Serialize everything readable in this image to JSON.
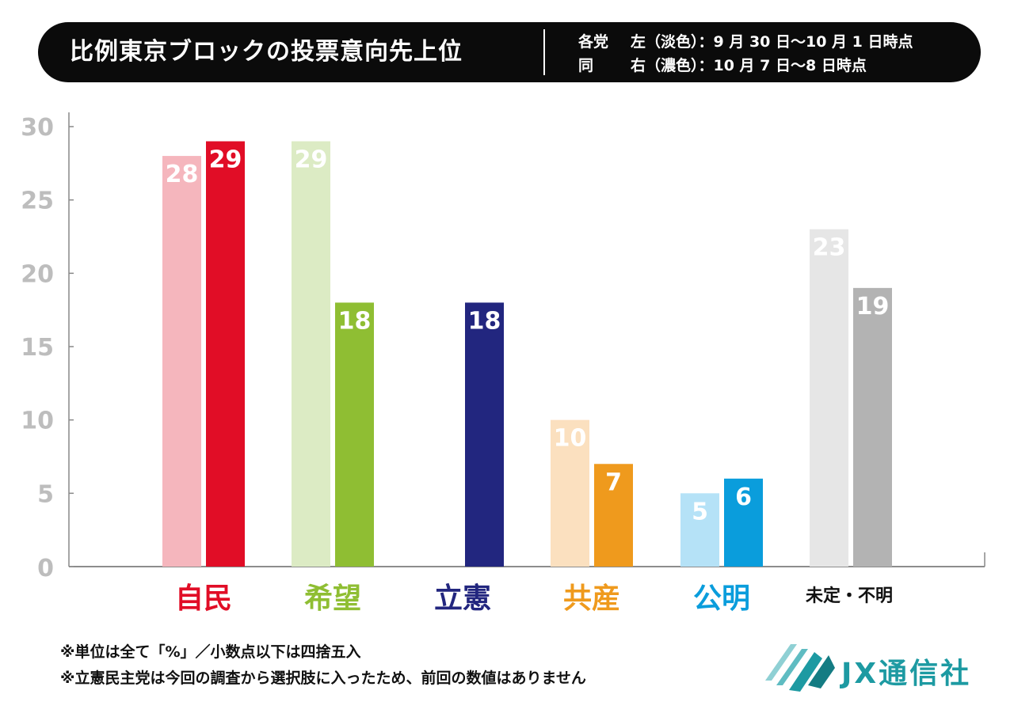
{
  "header": {
    "title": "比例東京ブロックの投票意向先上位",
    "legend": [
      {
        "who": "各党",
        "text": "左（淡色）：9 月 30 日〜10 月 1 日時点"
      },
      {
        "who": "同",
        "text": "右（濃色）：10 月 7 日〜8 日時点"
      }
    ]
  },
  "chart_data": {
    "type": "bar",
    "title": "比例東京ブロックの投票意向先上位",
    "xlabel": "",
    "ylabel": "",
    "ylim": [
      0,
      30
    ],
    "yticks": [
      0,
      5,
      10,
      15,
      20,
      25,
      30
    ],
    "categories": [
      "自民",
      "希望",
      "立憲",
      "共産",
      "公明",
      "未定・不明"
    ],
    "series": [
      {
        "name": "左（淡色）：9 月 30 日〜10 月 1 日時点",
        "values": [
          28,
          29,
          null,
          10,
          5,
          23
        ]
      },
      {
        "name": "右（濃色）：10 月 7 日〜8 日時点",
        "values": [
          29,
          18,
          18,
          7,
          6,
          19
        ]
      }
    ],
    "colors": {
      "light": [
        "#f5b6bd",
        "#dcebc4",
        null,
        "#fbe0bf",
        "#b5e2f7",
        "#e6e6e6"
      ],
      "dark": [
        "#e10d26",
        "#8fbe33",
        "#22267f",
        "#ef9a1d",
        "#0a9ddc",
        "#b3b3b3"
      ],
      "category_text": [
        "#e10d26",
        "#8fbe33",
        "#22267f",
        "#ef9a1d",
        "#0a9ddc",
        "#111111"
      ]
    }
  },
  "notes": [
    "※単位は全て「%」／小数点以下は四捨五入",
    "※立憲民主党は今回の調査から選択肢に入ったため、前回の数値はありません"
  ],
  "logo": {
    "text": "JX通信社",
    "color": "#1d9aa2"
  }
}
